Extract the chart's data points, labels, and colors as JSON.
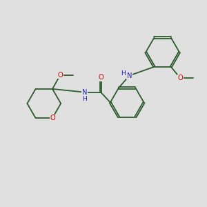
{
  "background_color": "#e0e0e0",
  "bond_color": "#2d5a2d",
  "bond_width": 1.3,
  "atom_colors": {
    "O": "#cc0000",
    "N": "#2222bb",
    "C": "#2d5a2d"
  },
  "font_size": 7.2,
  "fig_size": [
    3.0,
    3.0
  ],
  "dpi": 100
}
